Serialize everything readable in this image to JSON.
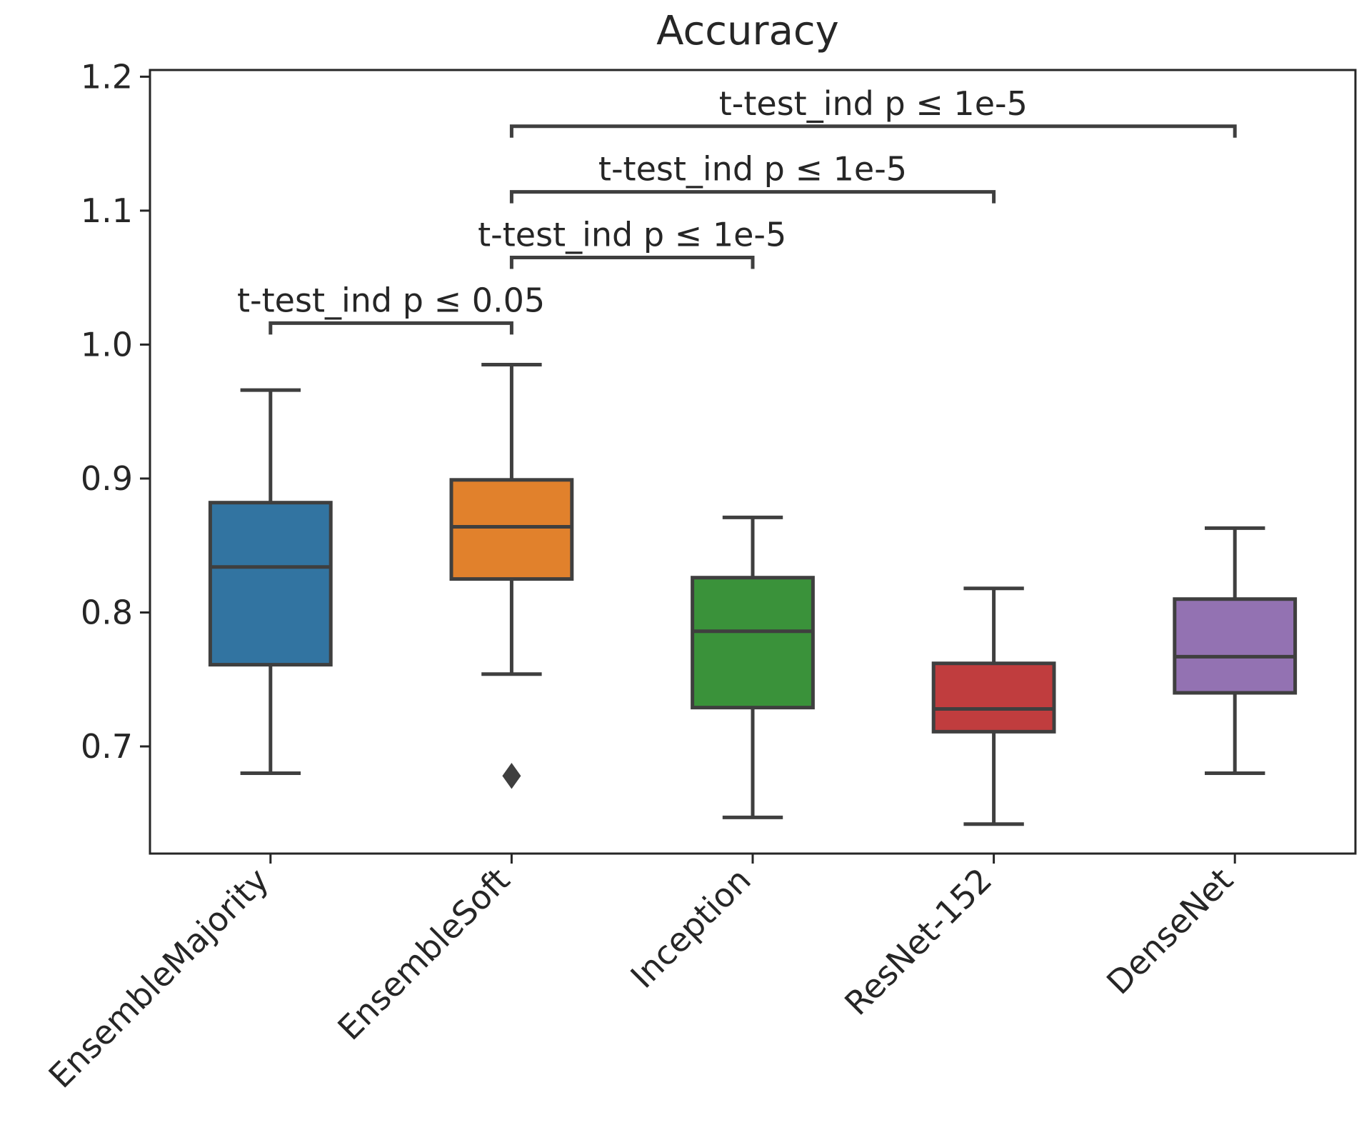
{
  "chart_data": {
    "type": "box",
    "title": "Accuracy",
    "xlabel": "",
    "ylabel": "",
    "ylim": [
      0.62,
      1.205
    ],
    "yticks": [
      0.7,
      0.8,
      0.9,
      1.0,
      1.1,
      1.2
    ],
    "ytick_labels": [
      "0.7",
      "0.8",
      "0.9",
      "1.0",
      "1.1",
      "1.2"
    ],
    "categories": [
      "EnsembleMajority",
      "EnsembleSoft",
      "Inception",
      "ResNet-152",
      "DenseNet"
    ],
    "boxes": [
      {
        "name": "EnsembleMajority",
        "whisker_low": 0.68,
        "q1": 0.761,
        "median": 0.834,
        "q3": 0.882,
        "whisker_high": 0.966,
        "outliers": [],
        "color": "#3274a1"
      },
      {
        "name": "EnsembleSoft",
        "whisker_low": 0.754,
        "q1": 0.825,
        "median": 0.864,
        "q3": 0.899,
        "whisker_high": 0.985,
        "outliers": [
          0.678
        ],
        "color": "#e1812c"
      },
      {
        "name": "Inception",
        "whisker_low": 0.647,
        "q1": 0.729,
        "median": 0.786,
        "q3": 0.826,
        "whisker_high": 0.871,
        "outliers": [],
        "color": "#3a923a"
      },
      {
        "name": "ResNet-152",
        "whisker_low": 0.642,
        "q1": 0.711,
        "median": 0.728,
        "q3": 0.762,
        "whisker_high": 0.818,
        "outliers": [],
        "color": "#c03d3e"
      },
      {
        "name": "DenseNet",
        "whisker_low": 0.68,
        "q1": 0.74,
        "median": 0.767,
        "q3": 0.81,
        "whisker_high": 0.863,
        "outliers": [],
        "color": "#9372b2"
      }
    ],
    "annotations": [
      {
        "from": 0,
        "to": 1,
        "level": 1.016,
        "text": "t-test_ind p ≤ 0.05"
      },
      {
        "from": 1,
        "to": 2,
        "level": 1.065,
        "text": "t-test_ind p ≤ 1e-5"
      },
      {
        "from": 1,
        "to": 3,
        "level": 1.114,
        "text": "t-test_ind p ≤ 1e-5"
      },
      {
        "from": 1,
        "to": 4,
        "level": 1.163,
        "text": "t-test_ind p ≤ 1e-5"
      }
    ],
    "grid": false,
    "legend": "none"
  }
}
